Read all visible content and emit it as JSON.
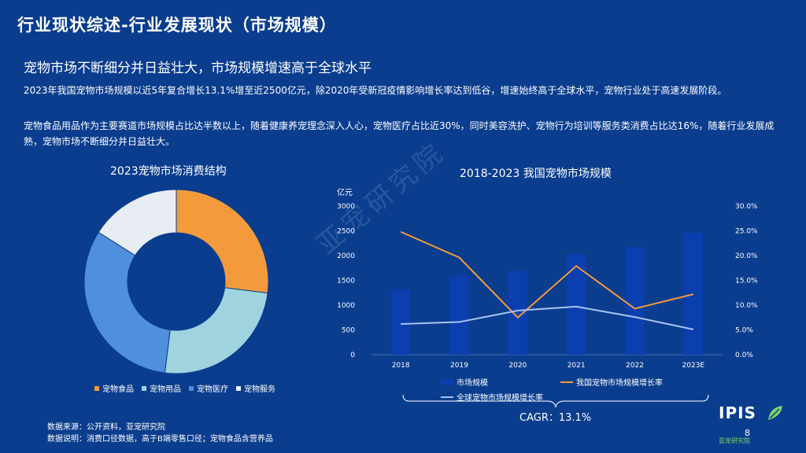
{
  "page": {
    "title": "行业现状综述-行业发展现状（市场规模）",
    "subtitle": "宠物市场不断细分并日益壮大，市场规模增速高于全球水平",
    "paragraph1": "2023年我国宠物市场规模以近5年复合增长13.1%增至近2500亿元，除2020年受新冠疫情影响增长率达到低谷，增速始终高于全球水平，宠物行业处于高速发展阶段。",
    "paragraph2": "宠物食品用品作为主要赛道市场规模占比达半数以上，随着健康养宠理念深入人心，宠物医疗占比近30%，同时美容洗护、宠物行为培训等服务类消费占比达16%，随着行业发展成熟，宠物市场不断细分并日益壮大。",
    "footnote1": "数据来源：公开资料，亚宠研究院",
    "footnote2": "数据说明：消费口径数据，高于B端零售口径；宠物食品含营养品",
    "watermark": "亚宠研究院",
    "cagr": "CAGR：13.1%",
    "page_number": "8",
    "logo_text": "IPIS",
    "logo_subtext": "亚宠研究院"
  },
  "colors": {
    "background": "#0a3d8e",
    "food": "#f39a3c",
    "supplies": "#9fd3e0",
    "medical": "#4f8fdc",
    "services": "#e8edf4",
    "bar": "#0b3fb0",
    "growth_line": "#f39a3c",
    "global_line": "#a8c4ee"
  },
  "chart_data": [
    {
      "type": "pie",
      "title": "2023宠物市场消费结构",
      "donut": true,
      "categories": [
        "宠物食品",
        "宠物用品",
        "宠物医疗",
        "宠物服务"
      ],
      "values": [
        27,
        25,
        32,
        16
      ],
      "legend": "bottom"
    },
    {
      "type": "bar",
      "title": "2018-2023 我国宠物市场规模",
      "categories": [
        "2018",
        "2019",
        "2020",
        "2021",
        "2022",
        "2023E"
      ],
      "ylabel": "亿元",
      "ylim": [
        0,
        3000
      ],
      "yticks": [
        "0",
        "500",
        "1000",
        "1500",
        "2000",
        "2500",
        "3000"
      ],
      "y2lim": [
        0,
        30
      ],
      "y2ticks": [
        "0.0%",
        "5.0%",
        "10.0%",
        "15.0%",
        "20.0%",
        "25.0%",
        "30.0%"
      ],
      "series": [
        {
          "name": "市场规模",
          "type": "bar",
          "values": [
            1320,
            1590,
            1690,
            2020,
            2170,
            2460
          ]
        },
        {
          "name": "我国宠物市场规模增长率",
          "type": "line",
          "axis": "y2",
          "values": [
            24.8,
            19.6,
            7.5,
            17.9,
            9.3,
            12.2
          ]
        },
        {
          "name": "全球宠物市场规模增长率",
          "type": "line",
          "axis": "y2",
          "values": [
            6.2,
            6.6,
            8.9,
            9.7,
            7.6,
            5.1
          ]
        }
      ],
      "legend": "bottom"
    }
  ]
}
